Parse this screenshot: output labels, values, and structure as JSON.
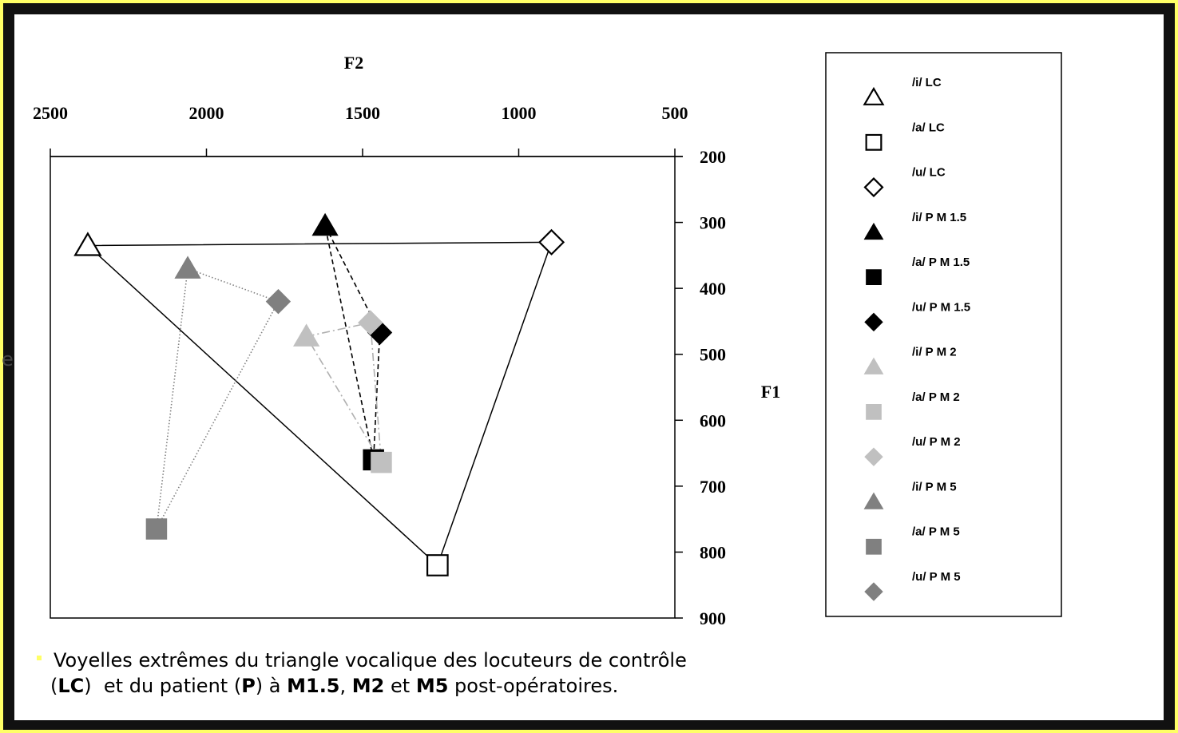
{
  "chart_data": {
    "type": "scatter",
    "x_label": "F2",
    "y_label": "F1",
    "xlim": [
      500,
      2500
    ],
    "x_reversed": true,
    "xticks": [
      2500,
      2000,
      1500,
      1000,
      500
    ],
    "ylim": [
      200,
      900
    ],
    "y_reversed": true,
    "yticks": [
      200,
      300,
      400,
      500,
      600,
      700,
      800,
      900
    ],
    "x_axis_position": "top",
    "y_axis_position": "right",
    "legend": "right",
    "series": [
      {
        "name": "/i/ LC",
        "color": "#000000",
        "marker": "triangle",
        "filled": false,
        "x": [
          2380
        ],
        "values": [
          335
        ]
      },
      {
        "name": "/a/ LC",
        "color": "#000000",
        "marker": "square",
        "filled": false,
        "x": [
          1260
        ],
        "values": [
          820
        ]
      },
      {
        "name": "/u/ LC",
        "color": "#000000",
        "marker": "diamond",
        "filled": false,
        "x": [
          895
        ],
        "values": [
          330
        ]
      },
      {
        "name": "/i/ P  M 1.5",
        "color": "#000000",
        "marker": "triangle",
        "filled": true,
        "x": [
          1620
        ],
        "values": [
          305
        ]
      },
      {
        "name": "/a/ P  M 1.5",
        "color": "#000000",
        "marker": "square",
        "filled": true,
        "x": [
          1465
        ],
        "values": [
          660
        ]
      },
      {
        "name": "/u/ P  M 1.5",
        "color": "#000000",
        "marker": "diamond",
        "filled": true,
        "x": [
          1445
        ],
        "values": [
          467
        ]
      },
      {
        "name": "/i/ P  M 2",
        "color": "#c0c0c0",
        "marker": "triangle",
        "filled": true,
        "x": [
          1680
        ],
        "values": [
          473
        ]
      },
      {
        "name": "/a/ P  M 2",
        "color": "#c0c0c0",
        "marker": "square",
        "filled": true,
        "x": [
          1440
        ],
        "values": [
          664
        ]
      },
      {
        "name": "/u/ P  M 2",
        "color": "#c0c0c0",
        "marker": "diamond",
        "filled": true,
        "x": [
          1475
        ],
        "values": [
          452
        ]
      },
      {
        "name": "/i/  P M 5",
        "color": "#808080",
        "marker": "triangle",
        "filled": true,
        "x": [
          2060
        ],
        "values": [
          370
        ]
      },
      {
        "name": "/a/  P  M 5",
        "color": "#808080",
        "marker": "square",
        "filled": true,
        "x": [
          2160
        ],
        "values": [
          765
        ]
      },
      {
        "name": "/u/  P  M 5",
        "color": "#808080",
        "marker": "diamond",
        "filled": true,
        "x": [
          1770
        ],
        "values": [
          420
        ]
      }
    ],
    "lines": [
      {
        "series": [
          0,
          2,
          1,
          0
        ],
        "color": "#000000",
        "style": "solid"
      },
      {
        "series": [
          3,
          5,
          4,
          3
        ],
        "color": "#000000",
        "style": "dashed"
      },
      {
        "series": [
          6,
          8,
          7,
          6
        ],
        "color": "#b0b0b0",
        "style": "dashdot"
      },
      {
        "series": [
          9,
          11,
          10,
          9
        ],
        "color": "#808080",
        "style": "dotted"
      }
    ],
    "caption": [
      [
        {
          "text": "Voyelles extrêmes du triangle vocalique des locuteurs de contrôle",
          "bold": false
        }
      ],
      [
        {
          "text": "(",
          "bold": false
        },
        {
          "text": "LC",
          "bold": true
        },
        {
          "text": ")  et du patient (",
          "bold": false
        },
        {
          "text": "P",
          "bold": true
        },
        {
          "text": ") à ",
          "bold": false
        },
        {
          "text": "M1.5",
          "bold": true
        },
        {
          "text": ", ",
          "bold": false
        },
        {
          "text": "M2",
          "bold": true
        },
        {
          "text": " et ",
          "bold": false
        },
        {
          "text": "M5",
          "bold": true
        },
        {
          "text": " post-opératoires.",
          "bold": false
        }
      ]
    ],
    "edge_text": "e"
  }
}
